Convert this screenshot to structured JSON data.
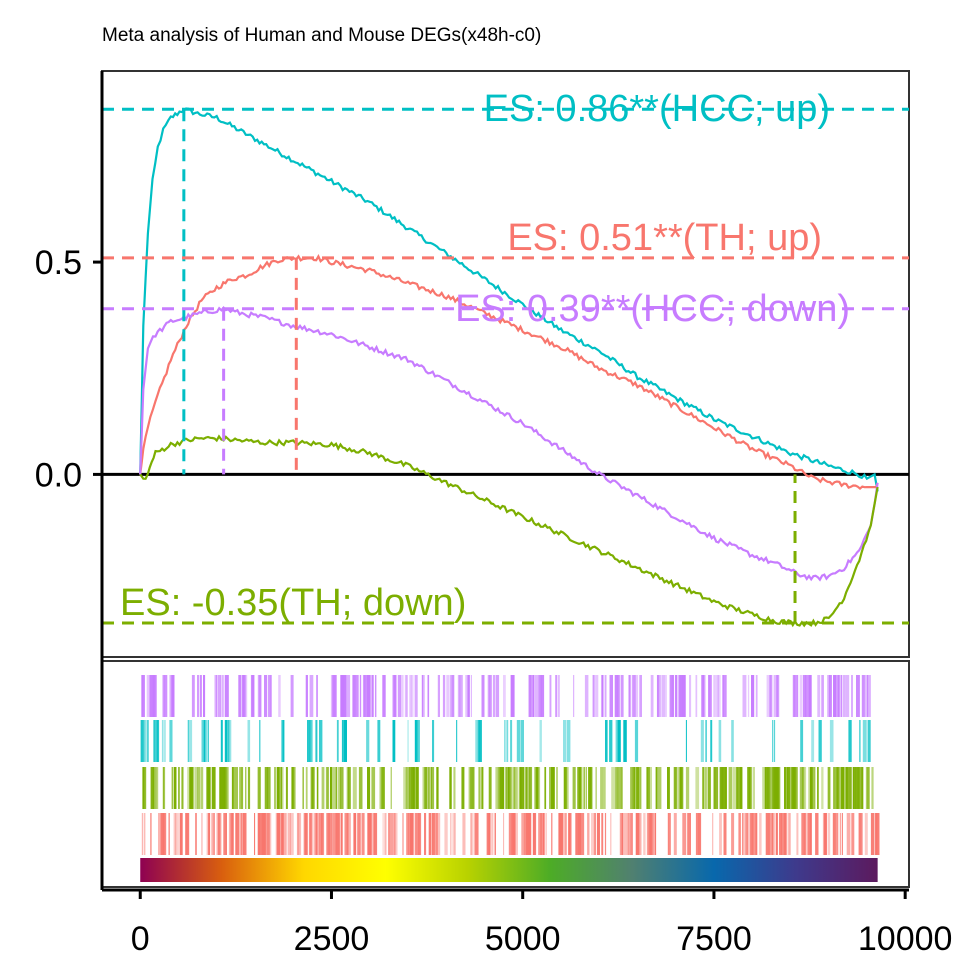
{
  "chart_data": {
    "type": "line",
    "title": "Meta analysis of Human and Mouse DEGs(x48h-c0)",
    "xlabel": "",
    "ylabel": "",
    "xlim": [
      -500,
      10050
    ],
    "ylim": [
      -0.43,
      0.95
    ],
    "x_ticks": [
      {
        "value": 0,
        "label": "0"
      },
      {
        "value": 2500,
        "label": "2500"
      },
      {
        "value": 5000,
        "label": "5000"
      },
      {
        "value": 7500,
        "label": "7500"
      },
      {
        "value": 10000,
        "label": "10000"
      }
    ],
    "y_ticks": [
      {
        "value": 0.5,
        "label": "0.5"
      },
      {
        "value": 0.0,
        "label": "0.0"
      }
    ],
    "grid": false,
    "zero_line": true,
    "series": [
      {
        "name": "HCC; up",
        "color": "#00BFC4",
        "es": 0.86,
        "es_position": 570,
        "label": "ES: 0.86**(HCC; up)",
        "points": [
          [
            0,
            0
          ],
          [
            40,
            0.35
          ],
          [
            100,
            0.57
          ],
          [
            160,
            0.69
          ],
          [
            230,
            0.77
          ],
          [
            300,
            0.81
          ],
          [
            400,
            0.84
          ],
          [
            570,
            0.86
          ],
          [
            750,
            0.85
          ],
          [
            1000,
            0.84
          ],
          [
            1200,
            0.82
          ],
          [
            1500,
            0.79
          ],
          [
            2000,
            0.74
          ],
          [
            2500,
            0.69
          ],
          [
            3000,
            0.64
          ],
          [
            3500,
            0.58
          ],
          [
            4000,
            0.52
          ],
          [
            4500,
            0.46
          ],
          [
            5000,
            0.4
          ],
          [
            5500,
            0.34
          ],
          [
            6000,
            0.29
          ],
          [
            6500,
            0.23
          ],
          [
            7000,
            0.18
          ],
          [
            7500,
            0.13
          ],
          [
            8000,
            0.09
          ],
          [
            8500,
            0.05
          ],
          [
            9000,
            0.02
          ],
          [
            9400,
            0.0
          ],
          [
            9500,
            -0.01
          ],
          [
            9600,
            0.0
          ],
          [
            9640,
            -0.04
          ]
        ]
      },
      {
        "name": "TH; up",
        "color": "#F8766D",
        "es": 0.51,
        "es_position": 2040,
        "label": "ES: 0.51**(TH; up)",
        "points": [
          [
            0,
            0
          ],
          [
            40,
            0.06
          ],
          [
            100,
            0.11
          ],
          [
            200,
            0.17
          ],
          [
            400,
            0.27
          ],
          [
            600,
            0.35
          ],
          [
            800,
            0.41
          ],
          [
            1000,
            0.44
          ],
          [
            1200,
            0.46
          ],
          [
            1400,
            0.47
          ],
          [
            1600,
            0.49
          ],
          [
            1800,
            0.505
          ],
          [
            2040,
            0.51
          ],
          [
            2300,
            0.51
          ],
          [
            2500,
            0.5
          ],
          [
            3000,
            0.48
          ],
          [
            3500,
            0.45
          ],
          [
            4000,
            0.42
          ],
          [
            4500,
            0.38
          ],
          [
            5000,
            0.34
          ],
          [
            5500,
            0.3
          ],
          [
            6000,
            0.25
          ],
          [
            6500,
            0.21
          ],
          [
            7000,
            0.16
          ],
          [
            7500,
            0.11
          ],
          [
            8000,
            0.06
          ],
          [
            8500,
            0.02
          ],
          [
            8800,
            -0.01
          ],
          [
            9200,
            -0.025
          ],
          [
            9500,
            -0.03
          ],
          [
            9620,
            -0.03
          ],
          [
            9640,
            -0.02
          ]
        ]
      },
      {
        "name": "HCC; down",
        "color": "#C77CFF",
        "es": 0.39,
        "es_position": 1090,
        "label": "ES: 0.39**(HCC; down)",
        "points": [
          [
            0,
            0
          ],
          [
            40,
            0.2
          ],
          [
            100,
            0.3
          ],
          [
            200,
            0.33
          ],
          [
            400,
            0.36
          ],
          [
            600,
            0.37
          ],
          [
            800,
            0.38
          ],
          [
            1090,
            0.39
          ],
          [
            1300,
            0.38
          ],
          [
            1600,
            0.37
          ],
          [
            2000,
            0.35
          ],
          [
            2500,
            0.33
          ],
          [
            3000,
            0.3
          ],
          [
            3500,
            0.27
          ],
          [
            4000,
            0.22
          ],
          [
            4500,
            0.17
          ],
          [
            5000,
            0.12
          ],
          [
            5500,
            0.06
          ],
          [
            6000,
            0.0
          ],
          [
            6500,
            -0.05
          ],
          [
            7000,
            -0.1
          ],
          [
            7500,
            -0.15
          ],
          [
            8000,
            -0.19
          ],
          [
            8300,
            -0.21
          ],
          [
            8600,
            -0.235
          ],
          [
            8800,
            -0.245
          ],
          [
            9000,
            -0.24
          ],
          [
            9200,
            -0.22
          ],
          [
            9400,
            -0.18
          ],
          [
            9550,
            -0.12
          ],
          [
            9600,
            -0.07
          ],
          [
            9640,
            -0.02
          ]
        ]
      },
      {
        "name": "TH; down",
        "color": "#7CAE00",
        "es": -0.35,
        "es_position": 8560,
        "label": "ES: -0.35(TH; down)",
        "points": [
          [
            0,
            0
          ],
          [
            40,
            -0.01
          ],
          [
            100,
            0.0
          ],
          [
            150,
            0.03
          ],
          [
            200,
            0.05
          ],
          [
            400,
            0.07
          ],
          [
            600,
            0.08
          ],
          [
            800,
            0.085
          ],
          [
            1000,
            0.085
          ],
          [
            1300,
            0.08
          ],
          [
            1600,
            0.075
          ],
          [
            2000,
            0.075
          ],
          [
            2500,
            0.07
          ],
          [
            3000,
            0.05
          ],
          [
            3500,
            0.02
          ],
          [
            4000,
            -0.02
          ],
          [
            4500,
            -0.06
          ],
          [
            5000,
            -0.1
          ],
          [
            5500,
            -0.14
          ],
          [
            6000,
            -0.18
          ],
          [
            6500,
            -0.22
          ],
          [
            7000,
            -0.26
          ],
          [
            7500,
            -0.3
          ],
          [
            8000,
            -0.33
          ],
          [
            8300,
            -0.345
          ],
          [
            8560,
            -0.35
          ],
          [
            8800,
            -0.35
          ],
          [
            9000,
            -0.34
          ],
          [
            9200,
            -0.29
          ],
          [
            9400,
            -0.2
          ],
          [
            9550,
            -0.12
          ],
          [
            9640,
            -0.03
          ]
        ]
      }
    ],
    "barcode_rows": [
      {
        "name": "HCC; down",
        "color": "#C77CFF",
        "density": 0.4
      },
      {
        "name": "HCC; up",
        "color": "#00BFC4",
        "density": 0.15
      },
      {
        "name": "TH; down",
        "color": "#7CAE00",
        "density": 0.55
      },
      {
        "name": "TH; up",
        "color": "#F8766D",
        "density": 0.55
      }
    ],
    "gradient_colors": [
      "#8E0152",
      "#D95F0E",
      "#FFD700",
      "#FFFF00",
      "#B8D200",
      "#4DAC26",
      "#508070",
      "#0868AC",
      "#3E3A8C",
      "#5C1A5E"
    ],
    "x_max": 9640
  }
}
